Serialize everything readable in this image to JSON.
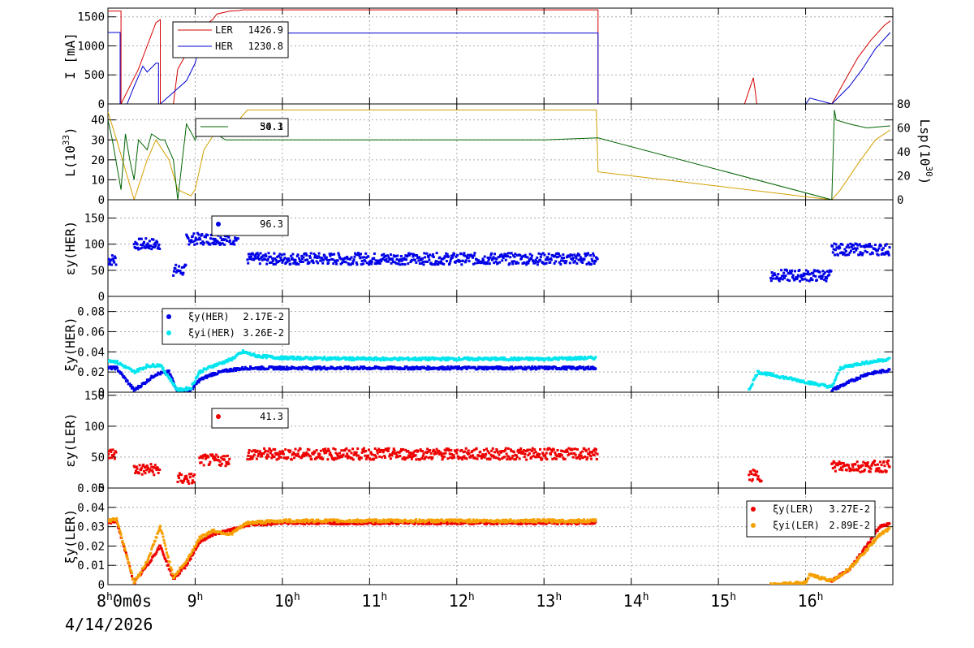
{
  "date_label": "4/14/2026",
  "chart_data": [
    {
      "type": "line",
      "ylabel": "I [mA]",
      "ylim": [
        0,
        1650
      ],
      "yticks": [
        0,
        500,
        1000,
        1500
      ],
      "grid": true,
      "legend": {
        "placement": "top-left",
        "entries": [
          {
            "name": "LER",
            "value": "1426.9",
            "color": "#d40000"
          },
          {
            "name": "HER",
            "value": "1230.8",
            "color": "#0000d4"
          }
        ]
      },
      "series": [
        {
          "name": "LER",
          "color": "#d40000",
          "x": [
            8.0,
            8.1,
            8.15,
            8.15,
            8.35,
            8.45,
            8.55,
            8.6,
            8.6,
            8.75,
            8.8,
            8.95,
            9.05,
            9.2,
            9.25,
            9.4,
            9.5,
            9.55,
            9.65,
            13.62,
            13.62,
            15.3,
            15.4,
            15.42,
            15.44,
            16.3,
            16.45,
            16.6,
            16.75,
            16.9,
            16.97
          ],
          "y": [
            1600,
            1600,
            1600,
            0,
            600,
            1000,
            1400,
            1450,
            0,
            0,
            600,
            1000,
            1300,
            1450,
            1550,
            1600,
            1610,
            1620,
            1620,
            1620,
            0,
            0,
            450,
            250,
            0,
            0,
            400,
            800,
            1100,
            1350,
            1430
          ]
        },
        {
          "name": "HER",
          "color": "#0000d4",
          "x": [
            8.0,
            8.14,
            8.14,
            8.22,
            8.3,
            8.4,
            8.45,
            8.55,
            8.58,
            8.58,
            8.6,
            8.75,
            8.9,
            9.0,
            9.05,
            9.2,
            9.3,
            9.35,
            13.62,
            13.62,
            16.0,
            16.05,
            16.3,
            16.5,
            16.65,
            16.8,
            16.97
          ],
          "y": [
            1230,
            1230,
            0,
            0,
            300,
            650,
            550,
            700,
            700,
            0,
            0,
            200,
            400,
            700,
            1000,
            1150,
            1200,
            1220,
            1220,
            0,
            0,
            100,
            0,
            300,
            600,
            950,
            1230
          ]
        }
      ]
    },
    {
      "type": "line",
      "ylabel": "L(10",
      "ylabel_sup": "33",
      "ylabel_end": ")",
      "y2label": "Lsp(10",
      "y2label_sup": "30",
      "y2label_end": ")",
      "ylim": [
        0,
        48
      ],
      "yticks": [
        0,
        10,
        20,
        30,
        40
      ],
      "y2lim": [
        0,
        80
      ],
      "y2ticks": [
        0,
        20,
        40,
        60,
        80
      ],
      "grid": true,
      "legend": {
        "placement": "top-left",
        "entries": [
          {
            "name": "",
            "value": "50.1",
            "color": "#d4a000"
          },
          {
            "name": "",
            "value": "34.3",
            "color": "#006400"
          }
        ]
      },
      "series": [
        {
          "name": "",
          "color": "#d4a000",
          "x": [
            8.0,
            8.1,
            8.3,
            8.45,
            8.55,
            8.7,
            8.8,
            8.95,
            9.0,
            9.05,
            9.1,
            9.25,
            9.5,
            9.6,
            10.0,
            11.0,
            12.0,
            13.0,
            13.6,
            13.62,
            16.3,
            16.4,
            16.6,
            16.8,
            16.97
          ],
          "y": [
            44,
            30,
            0,
            20,
            30,
            20,
            5,
            2,
            5,
            15,
            25,
            35,
            40,
            45,
            45,
            45,
            45,
            45,
            45,
            14,
            0,
            5,
            18,
            30,
            35
          ]
        },
        {
          "name": "",
          "color": "#006400",
          "x": [
            8.0,
            8.05,
            8.15,
            8.2,
            8.25,
            8.3,
            8.35,
            8.45,
            8.5,
            8.6,
            8.65,
            8.75,
            8.8,
            8.9,
            9.0,
            9.1,
            9.2,
            9.35,
            9.5,
            10.0,
            11.0,
            12.0,
            13.0,
            13.62,
            16.3,
            16.33,
            16.35,
            16.5,
            16.7,
            16.97
          ],
          "y": [
            40,
            30,
            5,
            33,
            20,
            10,
            30,
            25,
            33,
            30,
            30,
            20,
            0,
            38,
            30,
            40,
            34,
            30,
            30,
            30,
            30,
            30,
            30,
            31,
            0,
            45,
            40,
            38,
            36,
            37
          ]
        }
      ]
    },
    {
      "type": "scatter",
      "ylabel": "εy(HER)",
      "ylim": [
        0,
        185
      ],
      "yticks": [
        0,
        50,
        100,
        150
      ],
      "grid": true,
      "legend": {
        "placement": "top-left",
        "entries": [
          {
            "name": "",
            "value": "96.3",
            "color": "#0000e6"
          }
        ]
      },
      "series": [
        {
          "name": "",
          "color": "#0000e6",
          "segments": [
            [
              8.0,
              8.1,
              70
            ],
            [
              8.3,
              8.6,
              100
            ],
            [
              8.75,
              8.9,
              50
            ],
            [
              8.9,
              9.5,
              110
            ],
            [
              9.6,
              13.62,
              72
            ],
            [
              15.6,
              16.3,
              40
            ],
            [
              16.3,
              16.97,
              90
            ]
          ]
        }
      ]
    },
    {
      "type": "scatter",
      "ylabel": "ξy(HER)",
      "ylim": [
        0,
        0.095
      ],
      "yticks": [
        0,
        0.02,
        0.04,
        0.06,
        0.08
      ],
      "ytick_labels": [
        "0",
        "0.02",
        "0.04",
        "0.06",
        "0.08"
      ],
      "grid": true,
      "legend": {
        "placement": "top-left",
        "entries": [
          {
            "name": "ξy(HER)",
            "value": "2.17E-2",
            "color": "#0000e6"
          },
          {
            "name": "ξyi(HER)",
            "value": "3.26E-2",
            "color": "#00e5ee"
          }
        ]
      },
      "series": [
        {
          "name": "ξy(HER)",
          "color": "#0000e6",
          "points": [
            [
              8.0,
              0.024
            ],
            [
              8.1,
              0.024
            ],
            [
              8.3,
              0.002
            ],
            [
              8.4,
              0.008
            ],
            [
              8.55,
              0.018
            ],
            [
              8.7,
              0.02
            ],
            [
              8.8,
              0.001
            ],
            [
              8.95,
              0.002
            ],
            [
              9.05,
              0.012
            ],
            [
              9.2,
              0.018
            ],
            [
              9.4,
              0.022
            ],
            [
              9.6,
              0.024
            ],
            [
              10.0,
              0.024
            ],
            [
              11.0,
              0.024
            ],
            [
              12.0,
              0.024
            ],
            [
              13.0,
              0.024
            ],
            [
              13.6,
              0.024
            ],
            [
              16.3,
              0.002
            ],
            [
              16.5,
              0.01
            ],
            [
              16.7,
              0.018
            ],
            [
              16.97,
              0.022
            ]
          ]
        },
        {
          "name": "ξyi(HER)",
          "color": "#00e5ee",
          "points": [
            [
              8.0,
              0.032
            ],
            [
              8.1,
              0.03
            ],
            [
              8.3,
              0.02
            ],
            [
              8.45,
              0.026
            ],
            [
              8.6,
              0.027
            ],
            [
              8.8,
              0.002
            ],
            [
              8.95,
              0.004
            ],
            [
              9.05,
              0.02
            ],
            [
              9.2,
              0.026
            ],
            [
              9.4,
              0.032
            ],
            [
              9.55,
              0.04
            ],
            [
              9.7,
              0.036
            ],
            [
              10.0,
              0.034
            ],
            [
              11.0,
              0.033
            ],
            [
              12.0,
              0.033
            ],
            [
              13.0,
              0.033
            ],
            [
              13.6,
              0.034
            ],
            [
              15.35,
              0.002
            ],
            [
              15.45,
              0.02
            ],
            [
              16.3,
              0.005
            ],
            [
              16.4,
              0.024
            ],
            [
              16.6,
              0.028
            ],
            [
              16.97,
              0.033
            ]
          ]
        }
      ]
    },
    {
      "type": "scatter",
      "ylabel": "εy(LER)",
      "ylim": [
        0,
        155
      ],
      "yticks": [
        0,
        50,
        100,
        150
      ],
      "grid": true,
      "legend": {
        "placement": "top-left",
        "entries": [
          {
            "name": "",
            "value": "41.3",
            "color": "#ee0000"
          }
        ]
      },
      "series": [
        {
          "name": "",
          "color": "#ee0000",
          "segments": [
            [
              8.0,
              8.1,
              55
            ],
            [
              8.3,
              8.6,
              30
            ],
            [
              8.8,
              9.0,
              15
            ],
            [
              9.05,
              9.4,
              45
            ],
            [
              9.6,
              13.62,
              55
            ],
            [
              15.35,
              15.5,
              20
            ],
            [
              16.3,
              16.97,
              35
            ]
          ]
        }
      ]
    },
    {
      "type": "scatter",
      "ylabel": "ξy(LER)",
      "ylim": [
        0,
        0.05
      ],
      "yticks": [
        0,
        0.01,
        0.02,
        0.03,
        0.04,
        0.05
      ],
      "ytick_labels": [
        "0",
        "0.01",
        "0.02",
        "0.03",
        "0.04",
        "0.05"
      ],
      "grid": true,
      "legend": {
        "placement": "top-right",
        "entries": [
          {
            "name": "ξy(LER)",
            "value": "3.27E-2",
            "color": "#ee0000"
          },
          {
            "name": "ξyi(LER)",
            "value": "2.89E-2",
            "color": "#f5a000"
          }
        ]
      },
      "series": [
        {
          "name": "ξy(LER)",
          "color": "#ee0000",
          "points": [
            [
              8.0,
              0.032
            ],
            [
              8.1,
              0.033
            ],
            [
              8.3,
              0.001
            ],
            [
              8.45,
              0.01
            ],
            [
              8.6,
              0.02
            ],
            [
              8.75,
              0.003
            ],
            [
              8.9,
              0.01
            ],
            [
              9.05,
              0.022
            ],
            [
              9.2,
              0.026
            ],
            [
              9.4,
              0.028
            ],
            [
              9.6,
              0.031
            ],
            [
              10.0,
              0.032
            ],
            [
              11.0,
              0.032
            ],
            [
              12.0,
              0.032
            ],
            [
              13.0,
              0.032
            ],
            [
              13.6,
              0.032
            ],
            [
              16.3,
              0.002
            ],
            [
              16.5,
              0.008
            ],
            [
              16.7,
              0.02
            ],
            [
              16.85,
              0.03
            ],
            [
              16.97,
              0.032
            ]
          ]
        },
        {
          "name": "ξyi(LER)",
          "color": "#f5a000",
          "points": [
            [
              8.0,
              0.033
            ],
            [
              8.1,
              0.034
            ],
            [
              8.3,
              0.001
            ],
            [
              8.45,
              0.012
            ],
            [
              8.6,
              0.03
            ],
            [
              8.75,
              0.004
            ],
            [
              8.9,
              0.012
            ],
            [
              9.05,
              0.024
            ],
            [
              9.2,
              0.028
            ],
            [
              9.4,
              0.026
            ],
            [
              9.6,
              0.032
            ],
            [
              10.0,
              0.033
            ],
            [
              11.0,
              0.033
            ],
            [
              12.0,
              0.033
            ],
            [
              13.0,
              0.033
            ],
            [
              13.6,
              0.033
            ],
            [
              15.6,
              0.0
            ],
            [
              16.0,
              0.001
            ],
            [
              16.05,
              0.005
            ],
            [
              16.3,
              0.002
            ],
            [
              16.5,
              0.008
            ],
            [
              16.7,
              0.018
            ],
            [
              16.85,
              0.026
            ],
            [
              16.97,
              0.029
            ]
          ]
        }
      ]
    }
  ],
  "x_axis": {
    "xlim": [
      8.0,
      17.0
    ],
    "ticks": [
      {
        "h": "8",
        "suffix": "0m0s"
      },
      {
        "h": "9"
      },
      {
        "h": "10"
      },
      {
        "h": "11"
      },
      {
        "h": "12"
      },
      {
        "h": "13"
      },
      {
        "h": "14"
      },
      {
        "h": "15"
      },
      {
        "h": "16"
      }
    ]
  }
}
